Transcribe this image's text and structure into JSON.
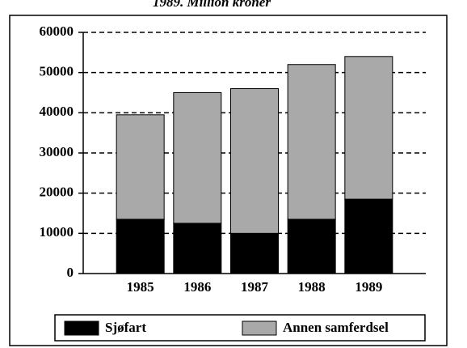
{
  "chart_data": {
    "type": "bar",
    "stacked": true,
    "subtitle": "1989. Million kroner",
    "categories": [
      "1985",
      "1986",
      "1987",
      "1988",
      "1989"
    ],
    "series": [
      {
        "name": "Sjøfart",
        "color": "#000000",
        "values": [
          13500,
          12500,
          10000,
          13500,
          18500
        ]
      },
      {
        "name": "Annen samferdsel",
        "color": "#a9a9a9",
        "values": [
          26000,
          32500,
          36000,
          38500,
          35500
        ]
      }
    ],
    "ylim": [
      0,
      60000
    ],
    "yticks": [
      0,
      10000,
      20000,
      30000,
      40000,
      50000,
      60000
    ],
    "grid": true
  }
}
